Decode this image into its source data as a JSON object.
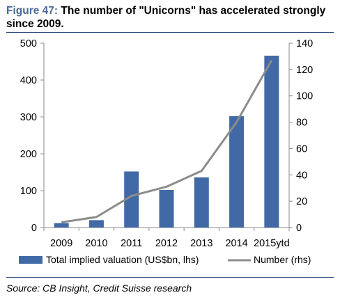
{
  "header": {
    "figure_label": "Figure 47:",
    "title_text": "The number of \"Unicorns\" has accelerated strongly since 2009."
  },
  "footer": {
    "source": "Source: CB Insight, Credit Suisse research"
  },
  "chart_data": {
    "type": "bar",
    "categories": [
      "2009",
      "2010",
      "2011",
      "2012",
      "2013",
      "2014",
      "2015ytd"
    ],
    "series": [
      {
        "name": "Total implied valuation (US$bn, lhs)",
        "type": "bar",
        "axis": "left",
        "color": "#4169a6",
        "values": [
          12,
          20,
          152,
          102,
          136,
          302,
          466
        ]
      },
      {
        "name": "Number (rhs)",
        "type": "line",
        "axis": "right",
        "color": "#8c8c8c",
        "values": [
          4,
          8,
          24,
          31,
          43,
          80,
          127
        ]
      }
    ],
    "y_left": {
      "lim": [
        0,
        500
      ],
      "ticks": [
        0,
        100,
        200,
        300,
        400,
        500
      ]
    },
    "y_right": {
      "lim": [
        0,
        140
      ],
      "ticks": [
        0,
        20,
        40,
        60,
        80,
        100,
        120,
        140
      ]
    },
    "grid": false,
    "legend_position": "bottom"
  }
}
